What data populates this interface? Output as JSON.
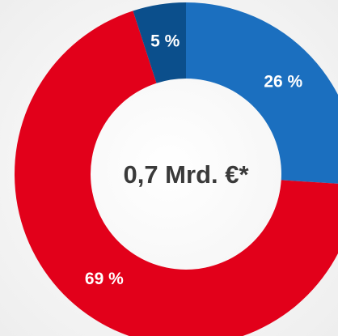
{
  "chart_data": {
    "type": "donut",
    "center_label": "0,7 Mrd. €*",
    "categories": [
      null,
      null,
      null
    ],
    "values": [
      26,
      69,
      5
    ],
    "value_labels": [
      "26 %",
      "69 %",
      "5 %"
    ],
    "colors": [
      "#1b6fbf",
      "#e2001a",
      "#0b4f8c"
    ]
  }
}
